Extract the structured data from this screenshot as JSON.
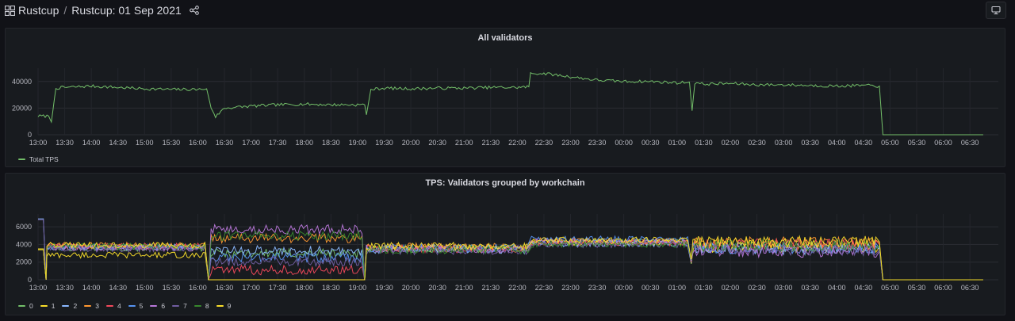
{
  "header": {
    "folder": "Rustcup",
    "separator": "/",
    "dashboard_title": "Rustcup: 01 Sep 2021"
  },
  "panels": [
    {
      "title": "All validators",
      "legend": [
        {
          "label": "Total TPS",
          "color": "#73bf69"
        }
      ]
    },
    {
      "title": "TPS: Validators grouped by workchain",
      "legend": [
        {
          "label": "0",
          "color": "#73bf69"
        },
        {
          "label": "1",
          "color": "#fade2a"
        },
        {
          "label": "2",
          "color": "#8ab8ff"
        },
        {
          "label": "3",
          "color": "#ff9830"
        },
        {
          "label": "4",
          "color": "#f2495c"
        },
        {
          "label": "5",
          "color": "#5794f2"
        },
        {
          "label": "6",
          "color": "#b877d9"
        },
        {
          "label": "7",
          "color": "#705da0"
        },
        {
          "label": "8",
          "color": "#37872d"
        },
        {
          "label": "9",
          "color": "#fade2a"
        }
      ]
    }
  ],
  "chart_data": [
    {
      "type": "line",
      "title": "All validators",
      "x_ticks": [
        "13:00",
        "13:30",
        "14:00",
        "14:30",
        "15:00",
        "15:30",
        "16:00",
        "16:30",
        "17:00",
        "17:30",
        "18:00",
        "18:30",
        "19:00",
        "19:30",
        "20:00",
        "20:30",
        "21:00",
        "21:30",
        "22:00",
        "22:30",
        "23:00",
        "23:30",
        "00:00",
        "00:30",
        "01:00",
        "01:30",
        "02:00",
        "02:30",
        "03:00",
        "03:30",
        "04:00",
        "04:30",
        "05:00",
        "05:30",
        "06:00",
        "06:30"
      ],
      "y_ticks": [
        0,
        20000,
        40000
      ],
      "ylim": [
        0,
        47000
      ],
      "grid": true,
      "legend_placement": "bottom-left",
      "series": [
        {
          "name": "Total TPS",
          "color": "#73bf69",
          "points": [
            [
              "13:00",
              14000
            ],
            [
              "13:12",
              14000
            ],
            [
              "13:15",
              9500
            ],
            [
              "13:20",
              35000
            ],
            [
              "13:30",
              35500
            ],
            [
              "14:00",
              36500
            ],
            [
              "14:30",
              35500
            ],
            [
              "15:00",
              34500
            ],
            [
              "15:30",
              34000
            ],
            [
              "16:00",
              34000
            ],
            [
              "16:10",
              34500
            ],
            [
              "16:15",
              20000
            ],
            [
              "16:20",
              13500
            ],
            [
              "16:30",
              20000
            ],
            [
              "17:00",
              21500
            ],
            [
              "17:30",
              22500
            ],
            [
              "18:00",
              23000
            ],
            [
              "18:30",
              22500
            ],
            [
              "19:00",
              22500
            ],
            [
              "19:08",
              22500
            ],
            [
              "19:10",
              15000
            ],
            [
              "19:15",
              34000
            ],
            [
              "19:30",
              35000
            ],
            [
              "20:00",
              34500
            ],
            [
              "20:30",
              35000
            ],
            [
              "21:00",
              35000
            ],
            [
              "21:30",
              35500
            ],
            [
              "22:00",
              35500
            ],
            [
              "22:13",
              36000
            ],
            [
              "22:15",
              46000
            ],
            [
              "22:30",
              46000
            ],
            [
              "23:00",
              43500
            ],
            [
              "23:30",
              41000
            ],
            [
              "00:00",
              40000
            ],
            [
              "00:30",
              40000
            ],
            [
              "01:00",
              39000
            ],
            [
              "01:14",
              39500
            ],
            [
              "01:17",
              18000
            ],
            [
              "01:20",
              39000
            ],
            [
              "01:30",
              38000
            ],
            [
              "02:00",
              38500
            ],
            [
              "02:30",
              37500
            ],
            [
              "03:00",
              37500
            ],
            [
              "03:30",
              37000
            ],
            [
              "04:00",
              36500
            ],
            [
              "04:30",
              37000
            ],
            [
              "04:48",
              36500
            ],
            [
              "04:52",
              0
            ],
            [
              "05:00",
              0
            ],
            [
              "06:45",
              0
            ]
          ]
        }
      ]
    },
    {
      "type": "line",
      "title": "TPS: Validators grouped by workchain",
      "x_ticks": [
        "13:00",
        "13:30",
        "14:00",
        "14:30",
        "15:00",
        "15:30",
        "16:00",
        "16:30",
        "17:00",
        "17:30",
        "18:00",
        "18:30",
        "19:00",
        "19:30",
        "20:00",
        "20:30",
        "21:00",
        "21:30",
        "22:00",
        "22:30",
        "23:00",
        "23:30",
        "00:00",
        "00:30",
        "01:00",
        "01:30",
        "02:00",
        "02:30",
        "03:00",
        "03:30",
        "04:00",
        "04:30",
        "05:00",
        "05:30",
        "06:00",
        "06:30"
      ],
      "y_ticks": [
        0,
        2000,
        4000,
        6000
      ],
      "ylim": [
        0,
        7000
      ],
      "grid": true,
      "legend_placement": "bottom-left",
      "series": [
        {
          "name": "0",
          "color": "#73bf69",
          "values": {
            "start": 3500,
            "p1": 3600,
            "p2": 3000,
            "p3": 3500,
            "p4": 4300,
            "p5": 3800
          }
        },
        {
          "name": "1",
          "color": "#fade2a",
          "values": {
            "start": 3400,
            "p1": 2800,
            "p2": 0,
            "p3": 3600,
            "p4": 4200,
            "p5": 3700
          }
        },
        {
          "name": "2",
          "color": "#8ab8ff",
          "values": {
            "start": 6900,
            "p1": 3700,
            "p2": 3300,
            "p3": 3400,
            "p4": 4100,
            "p5": 3500
          }
        },
        {
          "name": "3",
          "color": "#ff9830",
          "values": {
            "start": 3500,
            "p1": 3900,
            "p2": 4700,
            "p3": 3700,
            "p4": 4400,
            "p5": 4200
          }
        },
        {
          "name": "4",
          "color": "#f2495c",
          "values": {
            "start": 3500,
            "p1": 3800,
            "p2": 1100,
            "p3": 3500,
            "p4": 4200,
            "p5": 4000
          }
        },
        {
          "name": "5",
          "color": "#5794f2",
          "values": {
            "start": 3500,
            "p1": 3700,
            "p2": 2500,
            "p3": 3600,
            "p4": 4600,
            "p5": 3600
          }
        },
        {
          "name": "6",
          "color": "#b877d9",
          "values": {
            "start": 3500,
            "p1": 3600,
            "p2": 5700,
            "p3": 3500,
            "p4": 4300,
            "p5": 3200
          }
        },
        {
          "name": "7",
          "color": "#705da0",
          "values": {
            "start": 6800,
            "p1": 3500,
            "p2": 2100,
            "p3": 3300,
            "p4": 4000,
            "p5": 3400
          }
        },
        {
          "name": "8",
          "color": "#37872d",
          "values": {
            "start": 3500,
            "p1": 3800,
            "p2": 5000,
            "p3": 3400,
            "p4": 4000,
            "p5": 3900
          }
        },
        {
          "name": "9",
          "color": "#fade2a",
          "values": {
            "start": 3500,
            "p1": 3900,
            "p2": 0,
            "p3": 3800,
            "p4": 4500,
            "p5": 4300
          }
        }
      ]
    }
  ]
}
